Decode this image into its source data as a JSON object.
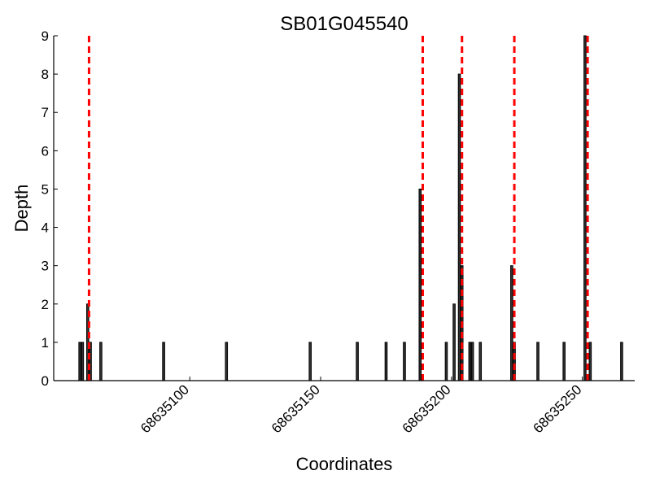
{
  "chart_data": {
    "type": "bar",
    "title": "SB01G045540",
    "xlabel": "Coordinates",
    "ylabel": "Depth",
    "xlim": [
      68635048,
      68635270
    ],
    "ylim": [
      0,
      9
    ],
    "xticks": [
      68635100,
      68635150,
      68635200,
      68635250
    ],
    "xtick_labels": [
      "68635100",
      "68635150",
      "68635200",
      "68635250"
    ],
    "yticks": [
      0,
      1,
      2,
      3,
      4,
      5,
      6,
      7,
      8,
      9
    ],
    "ytick_labels": [
      "0",
      "1",
      "2",
      "3",
      "4",
      "5",
      "6",
      "7",
      "8",
      "9"
    ],
    "grid": false,
    "bar_color": "#333333",
    "bar_edge_color": "#000000",
    "marker_color": "#ff0000",
    "bars": [
      {
        "x": 68635058,
        "y": 1
      },
      {
        "x": 68635059,
        "y": 1
      },
      {
        "x": 68635061,
        "y": 2
      },
      {
        "x": 68635062,
        "y": 1
      },
      {
        "x": 68635066,
        "y": 1
      },
      {
        "x": 68635090,
        "y": 1
      },
      {
        "x": 68635114,
        "y": 1
      },
      {
        "x": 68635146,
        "y": 1
      },
      {
        "x": 68635164,
        "y": 1
      },
      {
        "x": 68635175,
        "y": 1
      },
      {
        "x": 68635182,
        "y": 1
      },
      {
        "x": 68635188,
        "y": 5
      },
      {
        "x": 68635198,
        "y": 1
      },
      {
        "x": 68635201,
        "y": 2
      },
      {
        "x": 68635203,
        "y": 8
      },
      {
        "x": 68635204,
        "y": 3
      },
      {
        "x": 68635207,
        "y": 1
      },
      {
        "x": 68635208,
        "y": 1
      },
      {
        "x": 68635211,
        "y": 1
      },
      {
        "x": 68635223,
        "y": 3
      },
      {
        "x": 68635224,
        "y": 1
      },
      {
        "x": 68635233,
        "y": 1
      },
      {
        "x": 68635243,
        "y": 1
      },
      {
        "x": 68635251,
        "y": 9
      },
      {
        "x": 68635253,
        "y": 1
      },
      {
        "x": 68635265,
        "y": 1
      }
    ],
    "vlines": [
      68635061.5,
      68635189,
      68635204,
      68635224,
      68635252
    ]
  }
}
